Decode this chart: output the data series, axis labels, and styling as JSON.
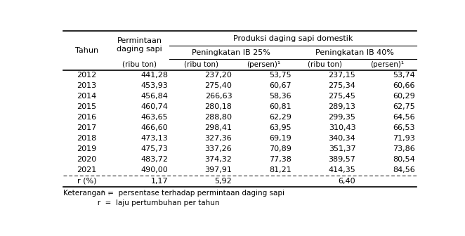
{
  "header_row1_span": "Produksi daging sapi domestik",
  "header_col0": "Tahun",
  "header_col1": "Permintaan\ndaging sapi",
  "header_ib25": "Peningkatan IB 25%",
  "header_ib40": "Peningkatan IB 40%",
  "unit_col1": "(ribu ton)",
  "unit_col2": "(ribu ton)",
  "unit_col3": "(persen)¹",
  "unit_col4": "(ribu ton)",
  "unit_col5": "(persen)¹",
  "data_rows": [
    [
      "2012",
      "441,28",
      "237,20",
      "53,75",
      "237,15",
      "53,74"
    ],
    [
      "2013",
      "453,93",
      "275,40",
      "60,67",
      "275,34",
      "60,66"
    ],
    [
      "2014",
      "456,84",
      "266,63",
      "58,36",
      "275,45",
      "60,29"
    ],
    [
      "2015",
      "460,74",
      "280,18",
      "60,81",
      "289,13",
      "62,75"
    ],
    [
      "2016",
      "463,65",
      "288,80",
      "62,29",
      "299,35",
      "64,56"
    ],
    [
      "2017",
      "466,60",
      "298,41",
      "63,95",
      "310,43",
      "66,53"
    ],
    [
      "2018",
      "473,13",
      "327,36",
      "69,19",
      "340,34",
      "71,93"
    ],
    [
      "2019",
      "475,73",
      "337,26",
      "70,89",
      "351,37",
      "73,86"
    ],
    [
      "2020",
      "483,72",
      "374,32",
      "77,38",
      "389,57",
      "80,54"
    ],
    [
      "2021",
      "490,00",
      "397,91",
      "81,21",
      "414,35",
      "84,56"
    ]
  ],
  "r_row": [
    "r (%)",
    "1,17",
    "5,92",
    "",
    "6,40",
    ""
  ],
  "note1_keterangan": "Keterangan : ",
  "note1_super": "¹",
  "note1_rest": " =  persentase terhadap permintaan daging sapi",
  "note2": "               r  =  laju pertumbuhan per tahun",
  "bg_color": "#ffffff",
  "text_color": "#000000",
  "font_size": 8.0,
  "font_size_small": 7.5
}
